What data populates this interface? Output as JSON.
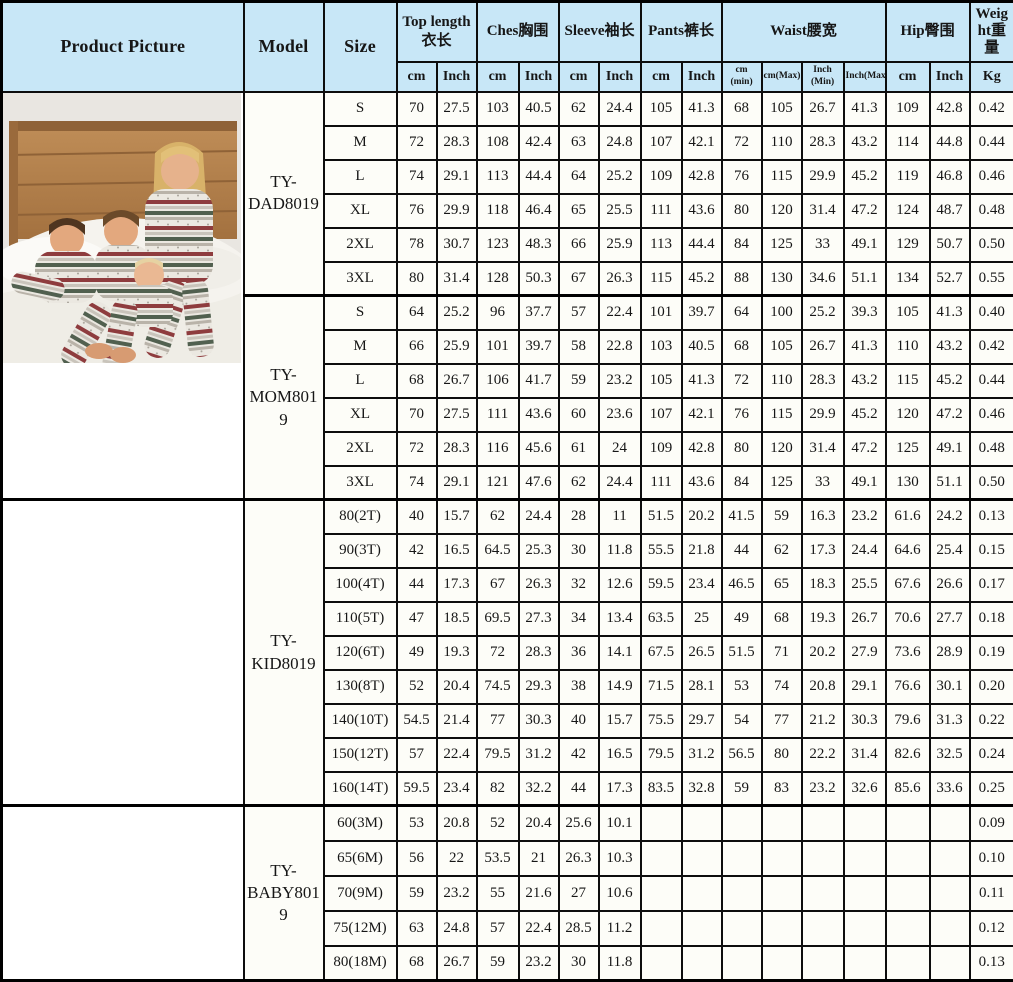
{
  "accent_colors": {
    "header_bg": "#c8e7f7",
    "border": "#000000",
    "cell_bg": "#fdfdf8"
  },
  "header": {
    "picture": "Product Picture",
    "model": "Model",
    "size": "Size",
    "groups": [
      {
        "label": "Top length 衣长"
      },
      {
        "label": "Ches胸围"
      },
      {
        "label": "Sleeve袖长"
      },
      {
        "label": "Pants裤长"
      },
      {
        "label": "Waist腰宽"
      },
      {
        "label": "Hip臀围"
      },
      {
        "label": "Weight重量"
      }
    ],
    "subs": [
      "cm",
      "Inch",
      "cm",
      "Inch",
      "cm",
      "Inch",
      "cm",
      "Inch",
      "cm (min)",
      "cm(Max)",
      "Inch (Min)",
      "Inch(Max)",
      "cm",
      "Inch",
      "Kg"
    ]
  },
  "photo": {
    "description": "family-in-matching-christmas-pajamas-on-bed",
    "wall": "#e9e6e1",
    "wood": "#b5834f",
    "bedding": "#f5f3ee",
    "stripe_white": "#ebe8e1",
    "stripe_red": "#8e3c3e",
    "stripe_green": "#51604f",
    "stripe_gray": "#c9c4bb"
  },
  "sections": [
    {
      "model": "TY-DAD8019",
      "picture": {
        "rowspan": 12,
        "content": "family-photo"
      },
      "rows": [
        {
          "size": "S",
          "values": [
            "70",
            "27.5",
            "103",
            "40.5",
            "62",
            "24.4",
            "105",
            "41.3",
            "68",
            "105",
            "26.7",
            "41.3",
            "109",
            "42.8",
            "0.42"
          ]
        },
        {
          "size": "M",
          "values": [
            "72",
            "28.3",
            "108",
            "42.4",
            "63",
            "24.8",
            "107",
            "42.1",
            "72",
            "110",
            "28.3",
            "43.2",
            "114",
            "44.8",
            "0.44"
          ]
        },
        {
          "size": "L",
          "values": [
            "74",
            "29.1",
            "113",
            "44.4",
            "64",
            "25.2",
            "109",
            "42.8",
            "76",
            "115",
            "29.9",
            "45.2",
            "119",
            "46.8",
            "0.46"
          ]
        },
        {
          "size": "XL",
          "values": [
            "76",
            "29.9",
            "118",
            "46.4",
            "65",
            "25.5",
            "111",
            "43.6",
            "80",
            "120",
            "31.4",
            "47.2",
            "124",
            "48.7",
            "0.48"
          ]
        },
        {
          "size": "2XL",
          "values": [
            "78",
            "30.7",
            "123",
            "48.3",
            "66",
            "25.9",
            "113",
            "44.4",
            "84",
            "125",
            "33",
            "49.1",
            "129",
            "50.7",
            "0.50"
          ]
        },
        {
          "size": "3XL",
          "values": [
            "80",
            "31.4",
            "128",
            "50.3",
            "67",
            "26.3",
            "115",
            "45.2",
            "88",
            "130",
            "34.6",
            "51.1",
            "134",
            "52.7",
            "0.55"
          ]
        }
      ]
    },
    {
      "model": "TY-MOM8019",
      "picture": null,
      "rows": [
        {
          "size": "S",
          "values": [
            "64",
            "25.2",
            "96",
            "37.7",
            "57",
            "22.4",
            "101",
            "39.7",
            "64",
            "100",
            "25.2",
            "39.3",
            "105",
            "41.3",
            "0.40"
          ]
        },
        {
          "size": "M",
          "values": [
            "66",
            "25.9",
            "101",
            "39.7",
            "58",
            "22.8",
            "103",
            "40.5",
            "68",
            "105",
            "26.7",
            "41.3",
            "110",
            "43.2",
            "0.42"
          ]
        },
        {
          "size": "L",
          "values": [
            "68",
            "26.7",
            "106",
            "41.7",
            "59",
            "23.2",
            "105",
            "41.3",
            "72",
            "110",
            "28.3",
            "43.2",
            "115",
            "45.2",
            "0.44"
          ]
        },
        {
          "size": "XL",
          "values": [
            "70",
            "27.5",
            "111",
            "43.6",
            "60",
            "23.6",
            "107",
            "42.1",
            "76",
            "115",
            "29.9",
            "45.2",
            "120",
            "47.2",
            "0.46"
          ]
        },
        {
          "size": "2XL",
          "values": [
            "72",
            "28.3",
            "116",
            "45.6",
            "61",
            "24",
            "109",
            "42.8",
            "80",
            "120",
            "31.4",
            "47.2",
            "125",
            "49.1",
            "0.48"
          ]
        },
        {
          "size": "3XL",
          "values": [
            "74",
            "29.1",
            "121",
            "47.6",
            "62",
            "24.4",
            "111",
            "43.6",
            "84",
            "125",
            "33",
            "49.1",
            "130",
            "51.1",
            "0.50"
          ]
        }
      ]
    },
    {
      "model": "TY-KID8019",
      "picture": {
        "rowspan": 9,
        "content": "empty"
      },
      "rows": [
        {
          "size": "80(2T)",
          "values": [
            "40",
            "15.7",
            "62",
            "24.4",
            "28",
            "11",
            "51.5",
            "20.2",
            "41.5",
            "59",
            "16.3",
            "23.2",
            "61.6",
            "24.2",
            "0.13"
          ]
        },
        {
          "size": "90(3T)",
          "values": [
            "42",
            "16.5",
            "64.5",
            "25.3",
            "30",
            "11.8",
            "55.5",
            "21.8",
            "44",
            "62",
            "17.3",
            "24.4",
            "64.6",
            "25.4",
            "0.15"
          ]
        },
        {
          "size": "100(4T)",
          "values": [
            "44",
            "17.3",
            "67",
            "26.3",
            "32",
            "12.6",
            "59.5",
            "23.4",
            "46.5",
            "65",
            "18.3",
            "25.5",
            "67.6",
            "26.6",
            "0.17"
          ]
        },
        {
          "size": "110(5T)",
          "values": [
            "47",
            "18.5",
            "69.5",
            "27.3",
            "34",
            "13.4",
            "63.5",
            "25",
            "49",
            "68",
            "19.3",
            "26.7",
            "70.6",
            "27.7",
            "0.18"
          ]
        },
        {
          "size": "120(6T)",
          "values": [
            "49",
            "19.3",
            "72",
            "28.3",
            "36",
            "14.1",
            "67.5",
            "26.5",
            "51.5",
            "71",
            "20.2",
            "27.9",
            "73.6",
            "28.9",
            "0.19"
          ]
        },
        {
          "size": "130(8T)",
          "values": [
            "52",
            "20.4",
            "74.5",
            "29.3",
            "38",
            "14.9",
            "71.5",
            "28.1",
            "53",
            "74",
            "20.8",
            "29.1",
            "76.6",
            "30.1",
            "0.20"
          ]
        },
        {
          "size": "140(10T)",
          "values": [
            "54.5",
            "21.4",
            "77",
            "30.3",
            "40",
            "15.7",
            "75.5",
            "29.7",
            "54",
            "77",
            "21.2",
            "30.3",
            "79.6",
            "31.3",
            "0.22"
          ]
        },
        {
          "size": "150(12T)",
          "values": [
            "57",
            "22.4",
            "79.5",
            "31.2",
            "42",
            "16.5",
            "79.5",
            "31.2",
            "56.5",
            "80",
            "22.2",
            "31.4",
            "82.6",
            "32.5",
            "0.24"
          ]
        },
        {
          "size": "160(14T)",
          "values": [
            "59.5",
            "23.4",
            "82",
            "32.2",
            "44",
            "17.3",
            "83.5",
            "32.8",
            "59",
            "83",
            "23.2",
            "32.6",
            "85.6",
            "33.6",
            "0.25"
          ]
        }
      ]
    },
    {
      "model": "TY-BABY8019",
      "picture": {
        "rowspan": 5,
        "content": "empty"
      },
      "rows": [
        {
          "size": "60(3M)",
          "values": [
            "53",
            "20.8",
            "52",
            "20.4",
            "25.6",
            "10.1",
            "",
            "",
            "",
            "",
            "",
            "",
            "",
            "",
            "0.09"
          ]
        },
        {
          "size": "65(6M)",
          "values": [
            "56",
            "22",
            "53.5",
            "21",
            "26.3",
            "10.3",
            "",
            "",
            "",
            "",
            "",
            "",
            "",
            "",
            "0.10"
          ]
        },
        {
          "size": "70(9M)",
          "values": [
            "59",
            "23.2",
            "55",
            "21.6",
            "27",
            "10.6",
            "",
            "",
            "",
            "",
            "",
            "",
            "",
            "",
            "0.11"
          ]
        },
        {
          "size": "75(12M)",
          "values": [
            "63",
            "24.8",
            "57",
            "22.4",
            "28.5",
            "11.2",
            "",
            "",
            "",
            "",
            "",
            "",
            "",
            "",
            "0.12"
          ]
        },
        {
          "size": "80(18M)",
          "values": [
            "68",
            "26.7",
            "59",
            "23.2",
            "30",
            "11.8",
            "",
            "",
            "",
            "",
            "",
            "",
            "",
            "",
            "0.13"
          ]
        }
      ]
    }
  ]
}
